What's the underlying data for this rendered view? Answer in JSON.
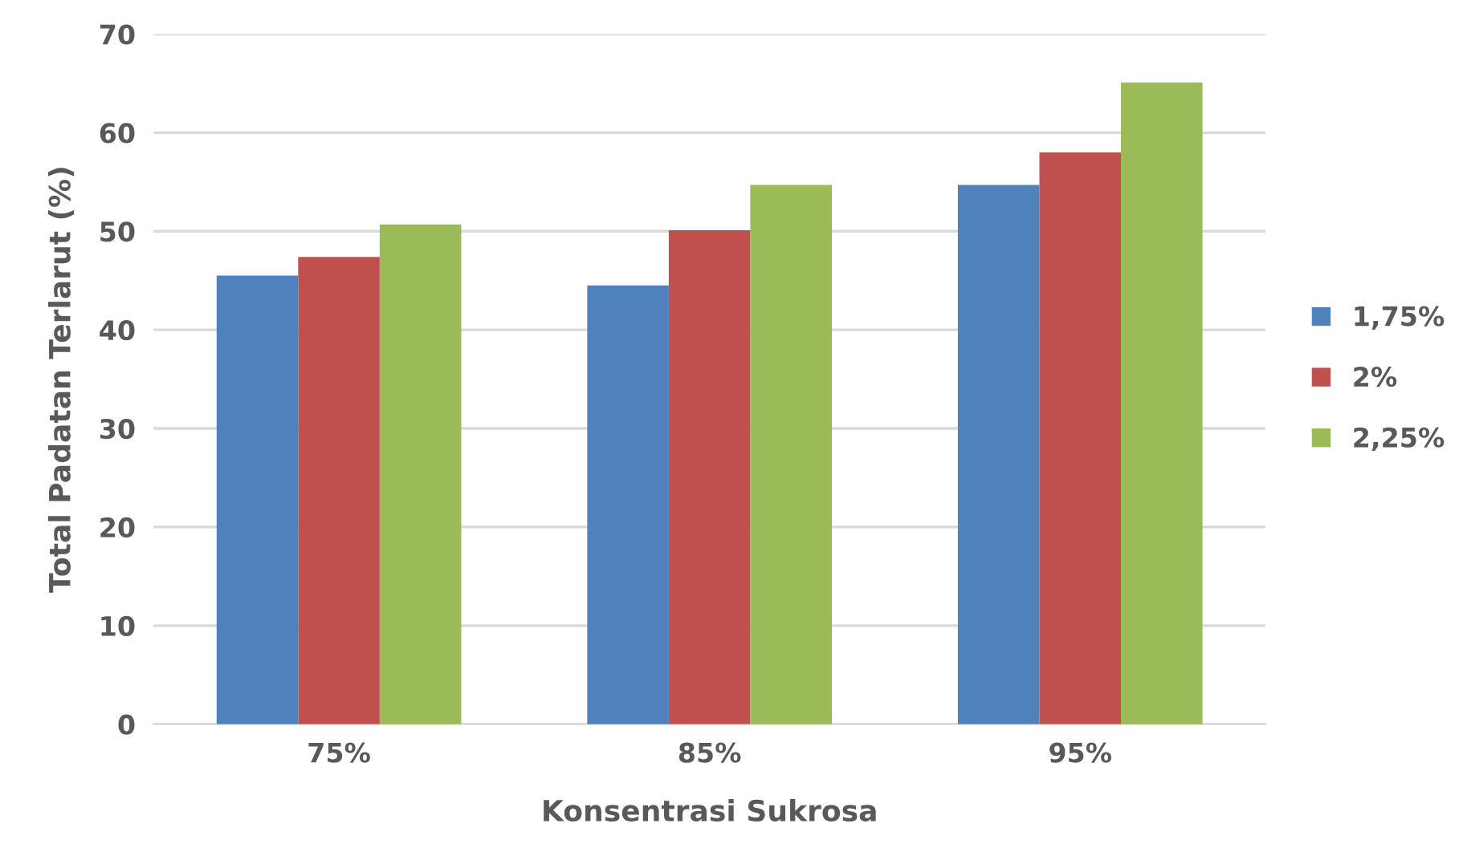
{
  "chart_data": {
    "type": "bar",
    "xlabel": "Konsentrasi Sukrosa",
    "ylabel": "Total Padatan Terlarut (%)",
    "categories": [
      "75%",
      "85%",
      "95%"
    ],
    "series": [
      {
        "name": "1,75%",
        "color": "#4f81bd",
        "values": [
          45.5,
          44.5,
          54.7
        ]
      },
      {
        "name": "2%",
        "color": "#c0504d",
        "values": [
          47.4,
          50.1,
          58.0
        ]
      },
      {
        "name": "2,25%",
        "color": "#9bbb59",
        "values": [
          50.7,
          54.7,
          65.1
        ]
      }
    ],
    "ylim": [
      0,
      70
    ],
    "yticks": [
      0,
      10,
      20,
      30,
      40,
      50,
      60,
      70
    ],
    "grid": "y",
    "legend": "right"
  }
}
